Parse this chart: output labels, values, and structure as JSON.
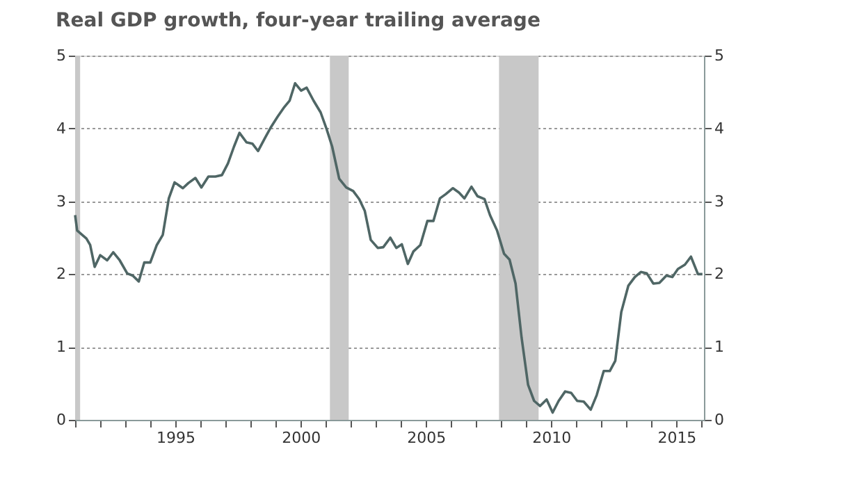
{
  "chart_data": {
    "type": "line",
    "title": "Real GDP growth, four-year trailing average",
    "x": [
      1991.0,
      1991.08,
      1991.45,
      1991.6,
      1991.78,
      1992.0,
      1992.28,
      1992.52,
      1992.78,
      1993.08,
      1993.3,
      1993.54,
      1993.76,
      1994.0,
      1994.26,
      1994.5,
      1994.74,
      1994.97,
      1995.3,
      1995.52,
      1995.8,
      1996.04,
      1996.32,
      1996.6,
      1996.86,
      1997.1,
      1997.34,
      1997.56,
      1997.84,
      1998.08,
      1998.3,
      1998.58,
      1998.82,
      1999.08,
      1999.32,
      1999.56,
      1999.78,
      2000.02,
      2000.24,
      2000.52,
      2000.8,
      2001.04,
      2001.26,
      2001.54,
      2001.82,
      2002.1,
      2002.34,
      2002.56,
      2002.8,
      2003.08,
      2003.3,
      2003.58,
      2003.82,
      2004.04,
      2004.28,
      2004.5,
      2004.78,
      2005.06,
      2005.3,
      2005.56,
      2005.8,
      2006.08,
      2006.32,
      2006.54,
      2006.82,
      2007.06,
      2007.34,
      2007.56,
      2007.84,
      2008.12,
      2008.34,
      2008.58,
      2008.82,
      2009.08,
      2009.32,
      2009.56,
      2009.82,
      2010.06,
      2010.3,
      2010.56,
      2010.8,
      2011.04,
      2011.3,
      2011.58,
      2011.82,
      2012.1,
      2012.34,
      2012.56,
      2012.8,
      2013.08,
      2013.34,
      2013.58,
      2013.82,
      2014.08,
      2014.32,
      2014.6,
      2014.84,
      2015.06,
      2015.34,
      2015.58,
      2015.86,
      2016.04
    ],
    "series": [
      {
        "color": "#4f6665",
        "values": [
          2.81,
          2.6,
          2.49,
          2.4,
          2.1,
          2.26,
          2.19,
          2.3,
          2.19,
          2.01,
          1.98,
          1.9,
          2.16,
          2.16,
          2.4,
          2.54,
          3.04,
          3.26,
          3.18,
          3.25,
          3.32,
          3.19,
          3.34,
          3.34,
          3.36,
          3.52,
          3.75,
          3.94,
          3.81,
          3.79,
          3.69,
          3.87,
          4.02,
          4.16,
          4.28,
          4.38,
          4.62,
          4.52,
          4.56,
          4.38,
          4.22,
          3.99,
          3.75,
          3.31,
          3.19,
          3.14,
          3.03,
          2.87,
          2.47,
          2.36,
          2.37,
          2.5,
          2.36,
          2.41,
          2.14,
          2.31,
          2.4,
          2.73,
          2.73,
          3.04,
          3.1,
          3.18,
          3.12,
          3.04,
          3.2,
          3.07,
          3.03,
          2.81,
          2.6,
          2.28,
          2.2,
          1.87,
          1.13,
          0.48,
          0.26,
          0.19,
          0.28,
          0.1,
          0.26,
          0.39,
          0.37,
          0.26,
          0.25,
          0.14,
          0.34,
          0.67,
          0.67,
          0.81,
          1.48,
          1.84,
          1.96,
          2.03,
          2.01,
          1.87,
          1.88,
          1.98,
          1.96,
          2.07,
          2.13,
          2.24,
          2.0,
          2.0
        ]
      }
    ],
    "xlim": [
      1991.0,
      2016.1
    ],
    "xticks": [
      {
        "value": 1991,
        "label": null
      },
      {
        "value": 1992,
        "label": null
      },
      {
        "value": 1993,
        "label": null
      },
      {
        "value": 1994,
        "label": null
      },
      {
        "value": 1995,
        "label": "1995"
      },
      {
        "value": 1996,
        "label": null
      },
      {
        "value": 1997,
        "label": null
      },
      {
        "value": 1998,
        "label": null
      },
      {
        "value": 1999,
        "label": null
      },
      {
        "value": 2000,
        "label": "2000"
      },
      {
        "value": 2001,
        "label": null
      },
      {
        "value": 2002,
        "label": null
      },
      {
        "value": 2003,
        "label": null
      },
      {
        "value": 2004,
        "label": null
      },
      {
        "value": 2005,
        "label": "2005"
      },
      {
        "value": 2006,
        "label": null
      },
      {
        "value": 2007,
        "label": null
      },
      {
        "value": 2008,
        "label": null
      },
      {
        "value": 2009,
        "label": null
      },
      {
        "value": 2010,
        "label": "2010"
      },
      {
        "value": 2011,
        "label": null
      },
      {
        "value": 2012,
        "label": null
      },
      {
        "value": 2013,
        "label": null
      },
      {
        "value": 2014,
        "label": null
      },
      {
        "value": 2015,
        "label": "2015"
      },
      {
        "value": 2016,
        "label": null
      }
    ],
    "ylim": [
      0,
      5
    ],
    "yticks": [
      0,
      1,
      2,
      3,
      4,
      5
    ],
    "y2lim": [
      0,
      5
    ],
    "y2ticks": [
      0,
      1,
      2,
      3,
      4,
      5
    ],
    "bands": [
      {
        "axis": "x",
        "from": 1991.0,
        "to": 1991.2,
        "color": "#c8c8c8"
      },
      {
        "axis": "x",
        "from": 2001.17,
        "to": 2001.92,
        "color": "#c8c8c8"
      },
      {
        "axis": "x",
        "from": 2007.92,
        "to": 2009.5,
        "color": "#c8c8c8"
      }
    ],
    "grid": "y",
    "marker": "none",
    "line_style": "solid"
  }
}
